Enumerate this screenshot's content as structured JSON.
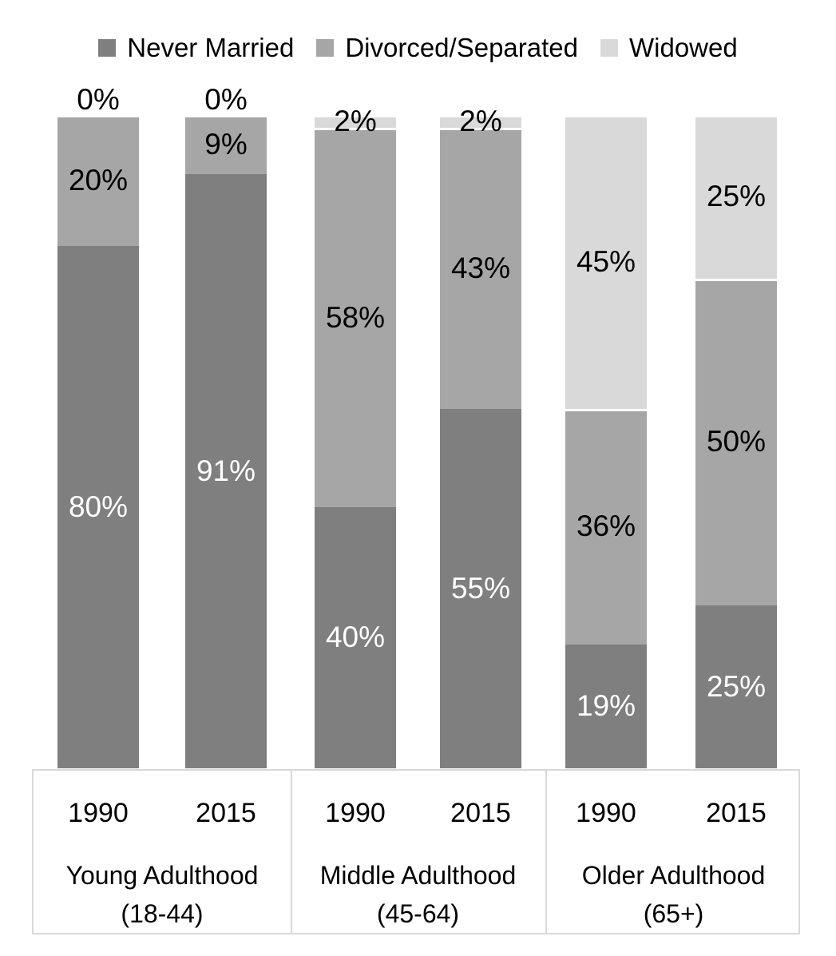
{
  "chart_data": {
    "type": "bar",
    "stacked": true,
    "unit": "%",
    "grid": false,
    "ylim": [
      0,
      100
    ],
    "legend_position": "top",
    "categories": [
      "1990",
      "2015",
      "1990",
      "2015",
      "1990",
      "2015"
    ],
    "groups": [
      {
        "line1": "Young Adulthood",
        "line2": "(18-44)"
      },
      {
        "line1": "Middle Adulthood",
        "line2": "(45-64)"
      },
      {
        "line1": "Older Adulthood",
        "line2": "(65+)"
      }
    ],
    "series": [
      {
        "name": "Never Married",
        "color": "#7f7f7f",
        "label_color": "#ffffff",
        "values": [
          80,
          91,
          40,
          55,
          19,
          25
        ]
      },
      {
        "name": "Divorced/Separated",
        "color": "#a6a6a6",
        "label_color": "#000000",
        "values": [
          20,
          9,
          58,
          43,
          36,
          50
        ]
      },
      {
        "name": "Widowed",
        "color": "#d9d9d9",
        "label_color": "#000000",
        "values": [
          0,
          0,
          2,
          2,
          45,
          25
        ]
      }
    ],
    "data_labels": true
  },
  "colors": {
    "segment_separator": "#ffffff",
    "axis_border": "#d9d9d9",
    "text": "#000000",
    "background": "#ffffff"
  }
}
